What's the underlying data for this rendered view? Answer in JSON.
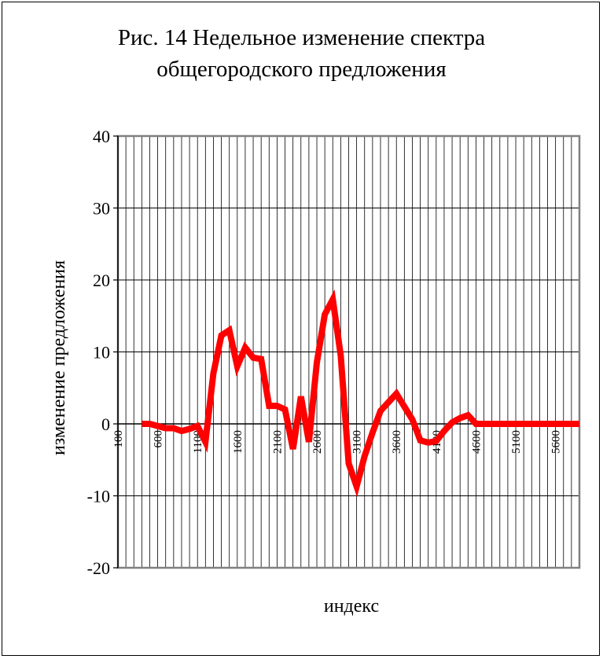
{
  "chart_data": {
    "type": "line",
    "title": "Рис. 14 Недельное изменение спектра общегородского предложения",
    "title_lines": [
      "Рис. 14 Недельное изменение спектра",
      "общегородского предложения"
    ],
    "xlabel": "индекс",
    "ylabel": "изменение предложения",
    "ylim": [
      -20,
      40
    ],
    "yticks": [
      -20,
      -10,
      0,
      10,
      20,
      30,
      40
    ],
    "xticks": [
      100,
      600,
      1100,
      1600,
      2100,
      2600,
      3100,
      3600,
      4100,
      4600,
      5100,
      5600
    ],
    "xlim": [
      100,
      5900
    ],
    "grid": true,
    "series": [
      {
        "color": "#ff0000",
        "x": [
          400,
          500,
          600,
          700,
          800,
          900,
          1000,
          1100,
          1200,
          1300,
          1400,
          1500,
          1600,
          1700,
          1800,
          1900,
          2000,
          2100,
          2200,
          2300,
          2400,
          2500,
          2600,
          2700,
          2800,
          2900,
          3000,
          3100,
          3200,
          3300,
          3400,
          3500,
          3600,
          3700,
          3800,
          3900,
          4000,
          4100,
          4200,
          4300,
          4400,
          4500,
          4600,
          4700,
          4800,
          4900,
          5000,
          5100,
          5200,
          5300,
          5400,
          5500,
          5600,
          5700,
          5800,
          5900
        ],
        "values": [
          0,
          0,
          -0.3,
          -0.6,
          -0.6,
          -1.0,
          -0.7,
          -0.3,
          -2.5,
          7,
          12.3,
          13,
          8,
          10.6,
          9.2,
          9,
          2.5,
          2.5,
          2.0,
          -3.5,
          3.8,
          -2.5,
          8.5,
          15.2,
          17.3,
          9.5,
          -5.5,
          -8.7,
          -4.5,
          -1.2,
          1.8,
          3.0,
          4.2,
          2.4,
          0.6,
          -2.3,
          -2.6,
          -2.4,
          -1.0,
          0.2,
          0.8,
          1.2,
          0,
          0,
          0,
          0,
          0,
          0,
          0,
          0,
          0,
          0,
          0,
          0,
          0,
          0
        ]
      }
    ]
  }
}
